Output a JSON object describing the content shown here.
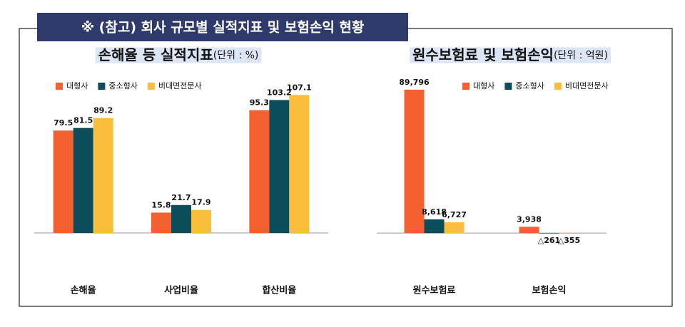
{
  "header": {
    "title": "※ (참고) 회사 규모별 실적지표 및 보험손익 현황"
  },
  "chart_data": [
    {
      "type": "bar",
      "title": "손해율 등 실적지표",
      "subtitle": "(단위 : %)",
      "categories": [
        "손해율",
        "사업비율",
        "합산비율"
      ],
      "series": [
        {
          "name": "대형사",
          "color": "#f4602f",
          "values": [
            79.5,
            15.8,
            95.3
          ]
        },
        {
          "name": "중소형사",
          "color": "#0b4d5a",
          "values": [
            81.5,
            21.7,
            103.2
          ]
        },
        {
          "name": "비대면전문사",
          "color": "#fbbd3c",
          "values": [
            89.2,
            17.9,
            107.1
          ]
        }
      ],
      "ylim": [
        0,
        120
      ],
      "legend": "top-left"
    },
    {
      "type": "bar",
      "title": "원수보험료 및 보험손익",
      "subtitle": "(단위 : 억원)",
      "categories": [
        "원수보험료",
        "보험손익"
      ],
      "series": [
        {
          "name": "대형사",
          "color": "#f4602f",
          "values": [
            89796,
            3938
          ],
          "value_labels": [
            "89,796",
            "3,938"
          ]
        },
        {
          "name": "중소형사",
          "color": "#0b4d5a",
          "values": [
            8618,
            -261
          ],
          "value_labels": [
            "8,618",
            "△261"
          ]
        },
        {
          "name": "비대면전문사",
          "color": "#fbbd3c",
          "values": [
            6727,
            -355
          ],
          "value_labels": [
            "6,727",
            "△355"
          ]
        }
      ],
      "ylim": [
        -20000,
        100000
      ],
      "legend": "top-right"
    }
  ]
}
